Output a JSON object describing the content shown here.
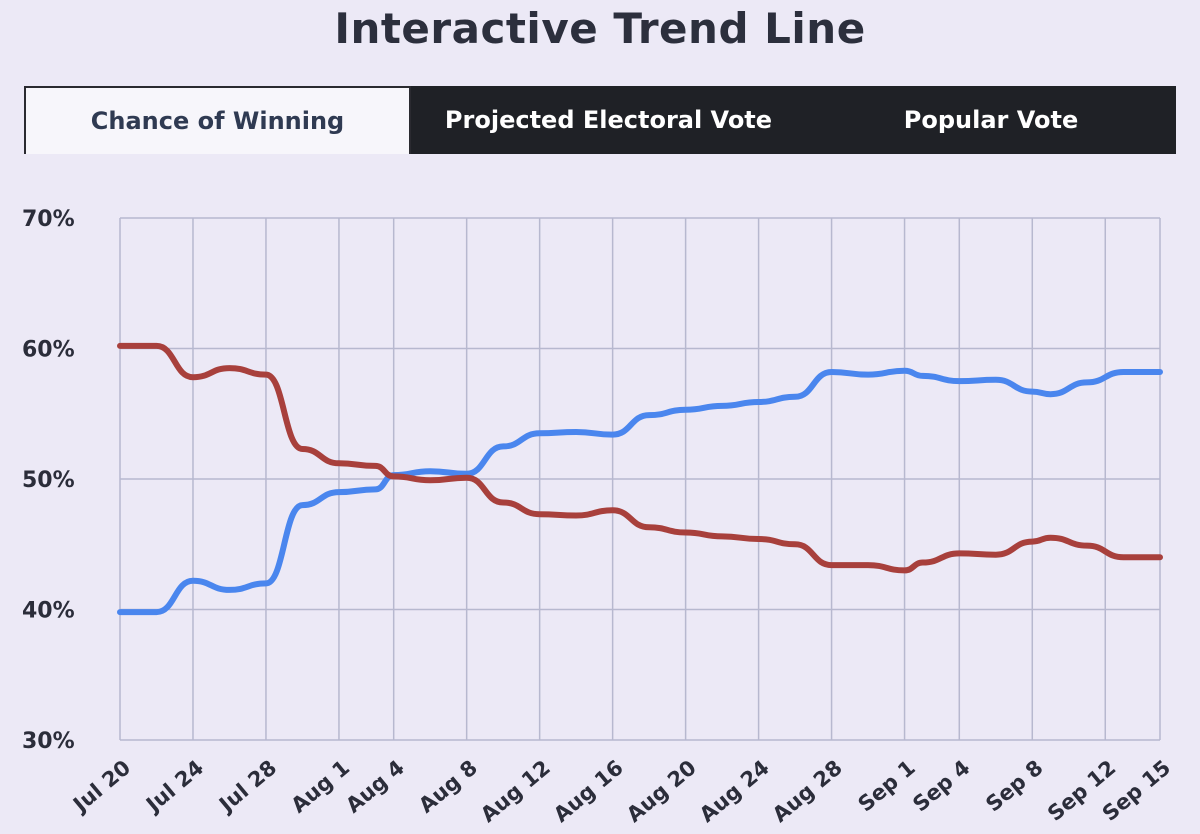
{
  "header": {
    "title": "Interactive  Trend Line"
  },
  "tabs": [
    {
      "label": "Chance of Winning",
      "active": true
    },
    {
      "label": "Projected Electoral Vote",
      "active": false
    },
    {
      "label": "Popular Vote",
      "active": false
    }
  ],
  "colors": {
    "blue_series": "#4a86ee",
    "red_series": "#a8403c",
    "grid": "#b7b8cf",
    "tab_dark": "#1f2126"
  },
  "chart_data": {
    "type": "line",
    "title": "Interactive  Trend Line",
    "xlabel": "",
    "ylabel": "",
    "ylim": [
      30,
      70
    ],
    "y_ticks": [
      "70%",
      "60%",
      "50%",
      "40%",
      "30%"
    ],
    "x_ticks": [
      "Jul 20",
      "Jul 24",
      "Jul 28",
      "Aug 1",
      "Aug 4",
      "Aug 8",
      "Aug 12",
      "Aug 16",
      "Aug 20",
      "Aug 24",
      "Aug 28",
      "Sep 1",
      "Sep 4",
      "Sep 8",
      "Sep 12",
      "Sep 15"
    ],
    "grid": true,
    "series": [
      {
        "color": "#4a86ee",
        "values": [
          [
            "Jul 20",
            39.8
          ],
          [
            "Jul 22",
            39.8
          ],
          [
            "Jul 24",
            42.2
          ],
          [
            "Jul 26",
            41.5
          ],
          [
            "Jul 28",
            42.0
          ],
          [
            "Jul 30",
            48.0
          ],
          [
            "Aug 1",
            49.0
          ],
          [
            "Aug 3",
            49.2
          ],
          [
            "Aug 4",
            50.3
          ],
          [
            "Aug 6",
            50.6
          ],
          [
            "Aug 8",
            50.4
          ],
          [
            "Aug 10",
            52.5
          ],
          [
            "Aug 12",
            53.5
          ],
          [
            "Aug 14",
            53.6
          ],
          [
            "Aug 16",
            53.4
          ],
          [
            "Aug 18",
            54.9
          ],
          [
            "Aug 20",
            55.3
          ],
          [
            "Aug 22",
            55.6
          ],
          [
            "Aug 24",
            55.9
          ],
          [
            "Aug 26",
            56.3
          ],
          [
            "Aug 28",
            58.2
          ],
          [
            "Aug 30",
            58.0
          ],
          [
            "Sep 1",
            58.3
          ],
          [
            "Sep 2",
            57.9
          ],
          [
            "Sep 4",
            57.5
          ],
          [
            "Sep 6",
            57.6
          ],
          [
            "Sep 8",
            56.7
          ],
          [
            "Sep 9",
            56.5
          ],
          [
            "Sep 11",
            57.4
          ],
          [
            "Sep 13",
            58.2
          ],
          [
            "Sep 15",
            58.2
          ]
        ]
      },
      {
        "color": "#a8403c",
        "values": [
          [
            "Jul 20",
            60.2
          ],
          [
            "Jul 22",
            60.2
          ],
          [
            "Jul 24",
            57.8
          ],
          [
            "Jul 26",
            58.5
          ],
          [
            "Jul 28",
            58.0
          ],
          [
            "Jul 30",
            52.3
          ],
          [
            "Aug 1",
            51.2
          ],
          [
            "Aug 3",
            51.0
          ],
          [
            "Aug 4",
            50.2
          ],
          [
            "Aug 6",
            49.9
          ],
          [
            "Aug 8",
            50.1
          ],
          [
            "Aug 10",
            48.2
          ],
          [
            "Aug 12",
            47.3
          ],
          [
            "Aug 14",
            47.2
          ],
          [
            "Aug 16",
            47.6
          ],
          [
            "Aug 18",
            46.3
          ],
          [
            "Aug 20",
            45.9
          ],
          [
            "Aug 22",
            45.6
          ],
          [
            "Aug 24",
            45.4
          ],
          [
            "Aug 26",
            45.0
          ],
          [
            "Aug 28",
            43.4
          ],
          [
            "Aug 30",
            43.4
          ],
          [
            "Sep 1",
            43.0
          ],
          [
            "Sep 2",
            43.6
          ],
          [
            "Sep 4",
            44.3
          ],
          [
            "Sep 6",
            44.2
          ],
          [
            "Sep 8",
            45.2
          ],
          [
            "Sep 9",
            45.5
          ],
          [
            "Sep 11",
            44.9
          ],
          [
            "Sep 13",
            44.0
          ],
          [
            "Sep 15",
            44.0
          ]
        ]
      }
    ]
  }
}
